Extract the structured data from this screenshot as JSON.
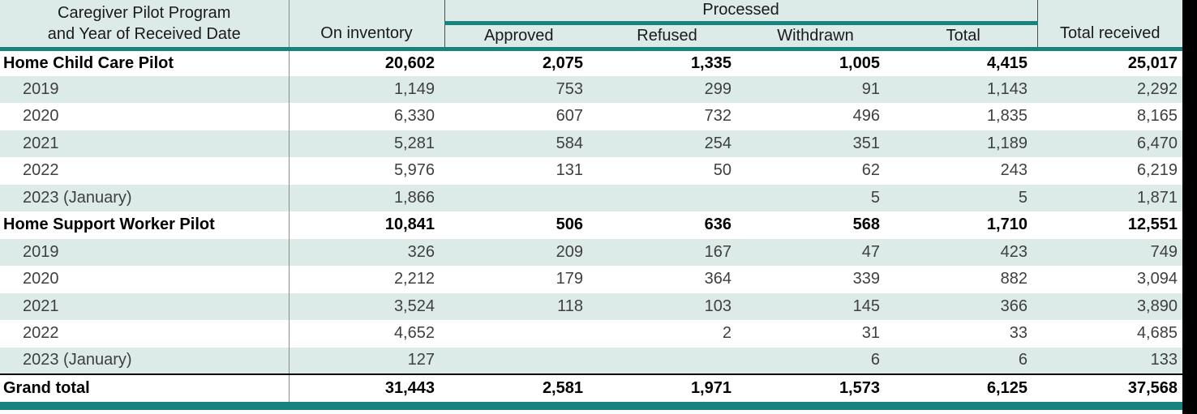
{
  "table": {
    "header": {
      "row_label_line1": "Caregiver Pilot Program",
      "row_label_line2": "and Year of Received Date",
      "on_inventory": "On inventory",
      "processed_group": "Processed",
      "approved": "Approved",
      "refused": "Refused",
      "withdrawn": "Withdrawn",
      "total": "Total",
      "total_received": "Total received"
    },
    "rows": [
      {
        "label": "Home Child Care Pilot",
        "style": "group",
        "values": [
          "20,602",
          "2,075",
          "1,335",
          "1,005",
          "4,415",
          "25,017"
        ]
      },
      {
        "label": "2019",
        "style": "year",
        "values": [
          "1,149",
          "753",
          "299",
          "91",
          "1,143",
          "2,292"
        ]
      },
      {
        "label": "2020",
        "style": "year",
        "values": [
          "6,330",
          "607",
          "732",
          "496",
          "1,835",
          "8,165"
        ]
      },
      {
        "label": "2021",
        "style": "year",
        "values": [
          "5,281",
          "584",
          "254",
          "351",
          "1,189",
          "6,470"
        ]
      },
      {
        "label": "2022",
        "style": "year",
        "values": [
          "5,976",
          "131",
          "50",
          "62",
          "243",
          "6,219"
        ]
      },
      {
        "label": "2023 (January)",
        "style": "year",
        "values": [
          "1,866",
          "",
          "",
          "5",
          "5",
          "1,871"
        ]
      },
      {
        "label": "Home Support Worker Pilot",
        "style": "group",
        "values": [
          "10,841",
          "506",
          "636",
          "568",
          "1,710",
          "12,551"
        ]
      },
      {
        "label": "2019",
        "style": "year",
        "values": [
          "326",
          "209",
          "167",
          "47",
          "423",
          "749"
        ]
      },
      {
        "label": "2020",
        "style": "year",
        "values": [
          "2,212",
          "179",
          "364",
          "339",
          "882",
          "3,094"
        ]
      },
      {
        "label": "2021",
        "style": "year",
        "values": [
          "3,524",
          "118",
          "103",
          "145",
          "366",
          "3,890"
        ]
      },
      {
        "label": "2022",
        "style": "year",
        "values": [
          "4,652",
          "",
          "2",
          "31",
          "33",
          "4,685"
        ]
      },
      {
        "label": "2023 (January)",
        "style": "year",
        "values": [
          "127",
          "",
          "",
          "6",
          "6",
          "133"
        ]
      },
      {
        "label": "Grand total",
        "style": "grand",
        "values": [
          "31,443",
          "2,581",
          "1,971",
          "1,573",
          "6,125",
          "37,568"
        ]
      }
    ],
    "colors": {
      "accent": "#17837e",
      "stripe": "#dcebe8",
      "header_bg": "#dcebe8"
    }
  }
}
